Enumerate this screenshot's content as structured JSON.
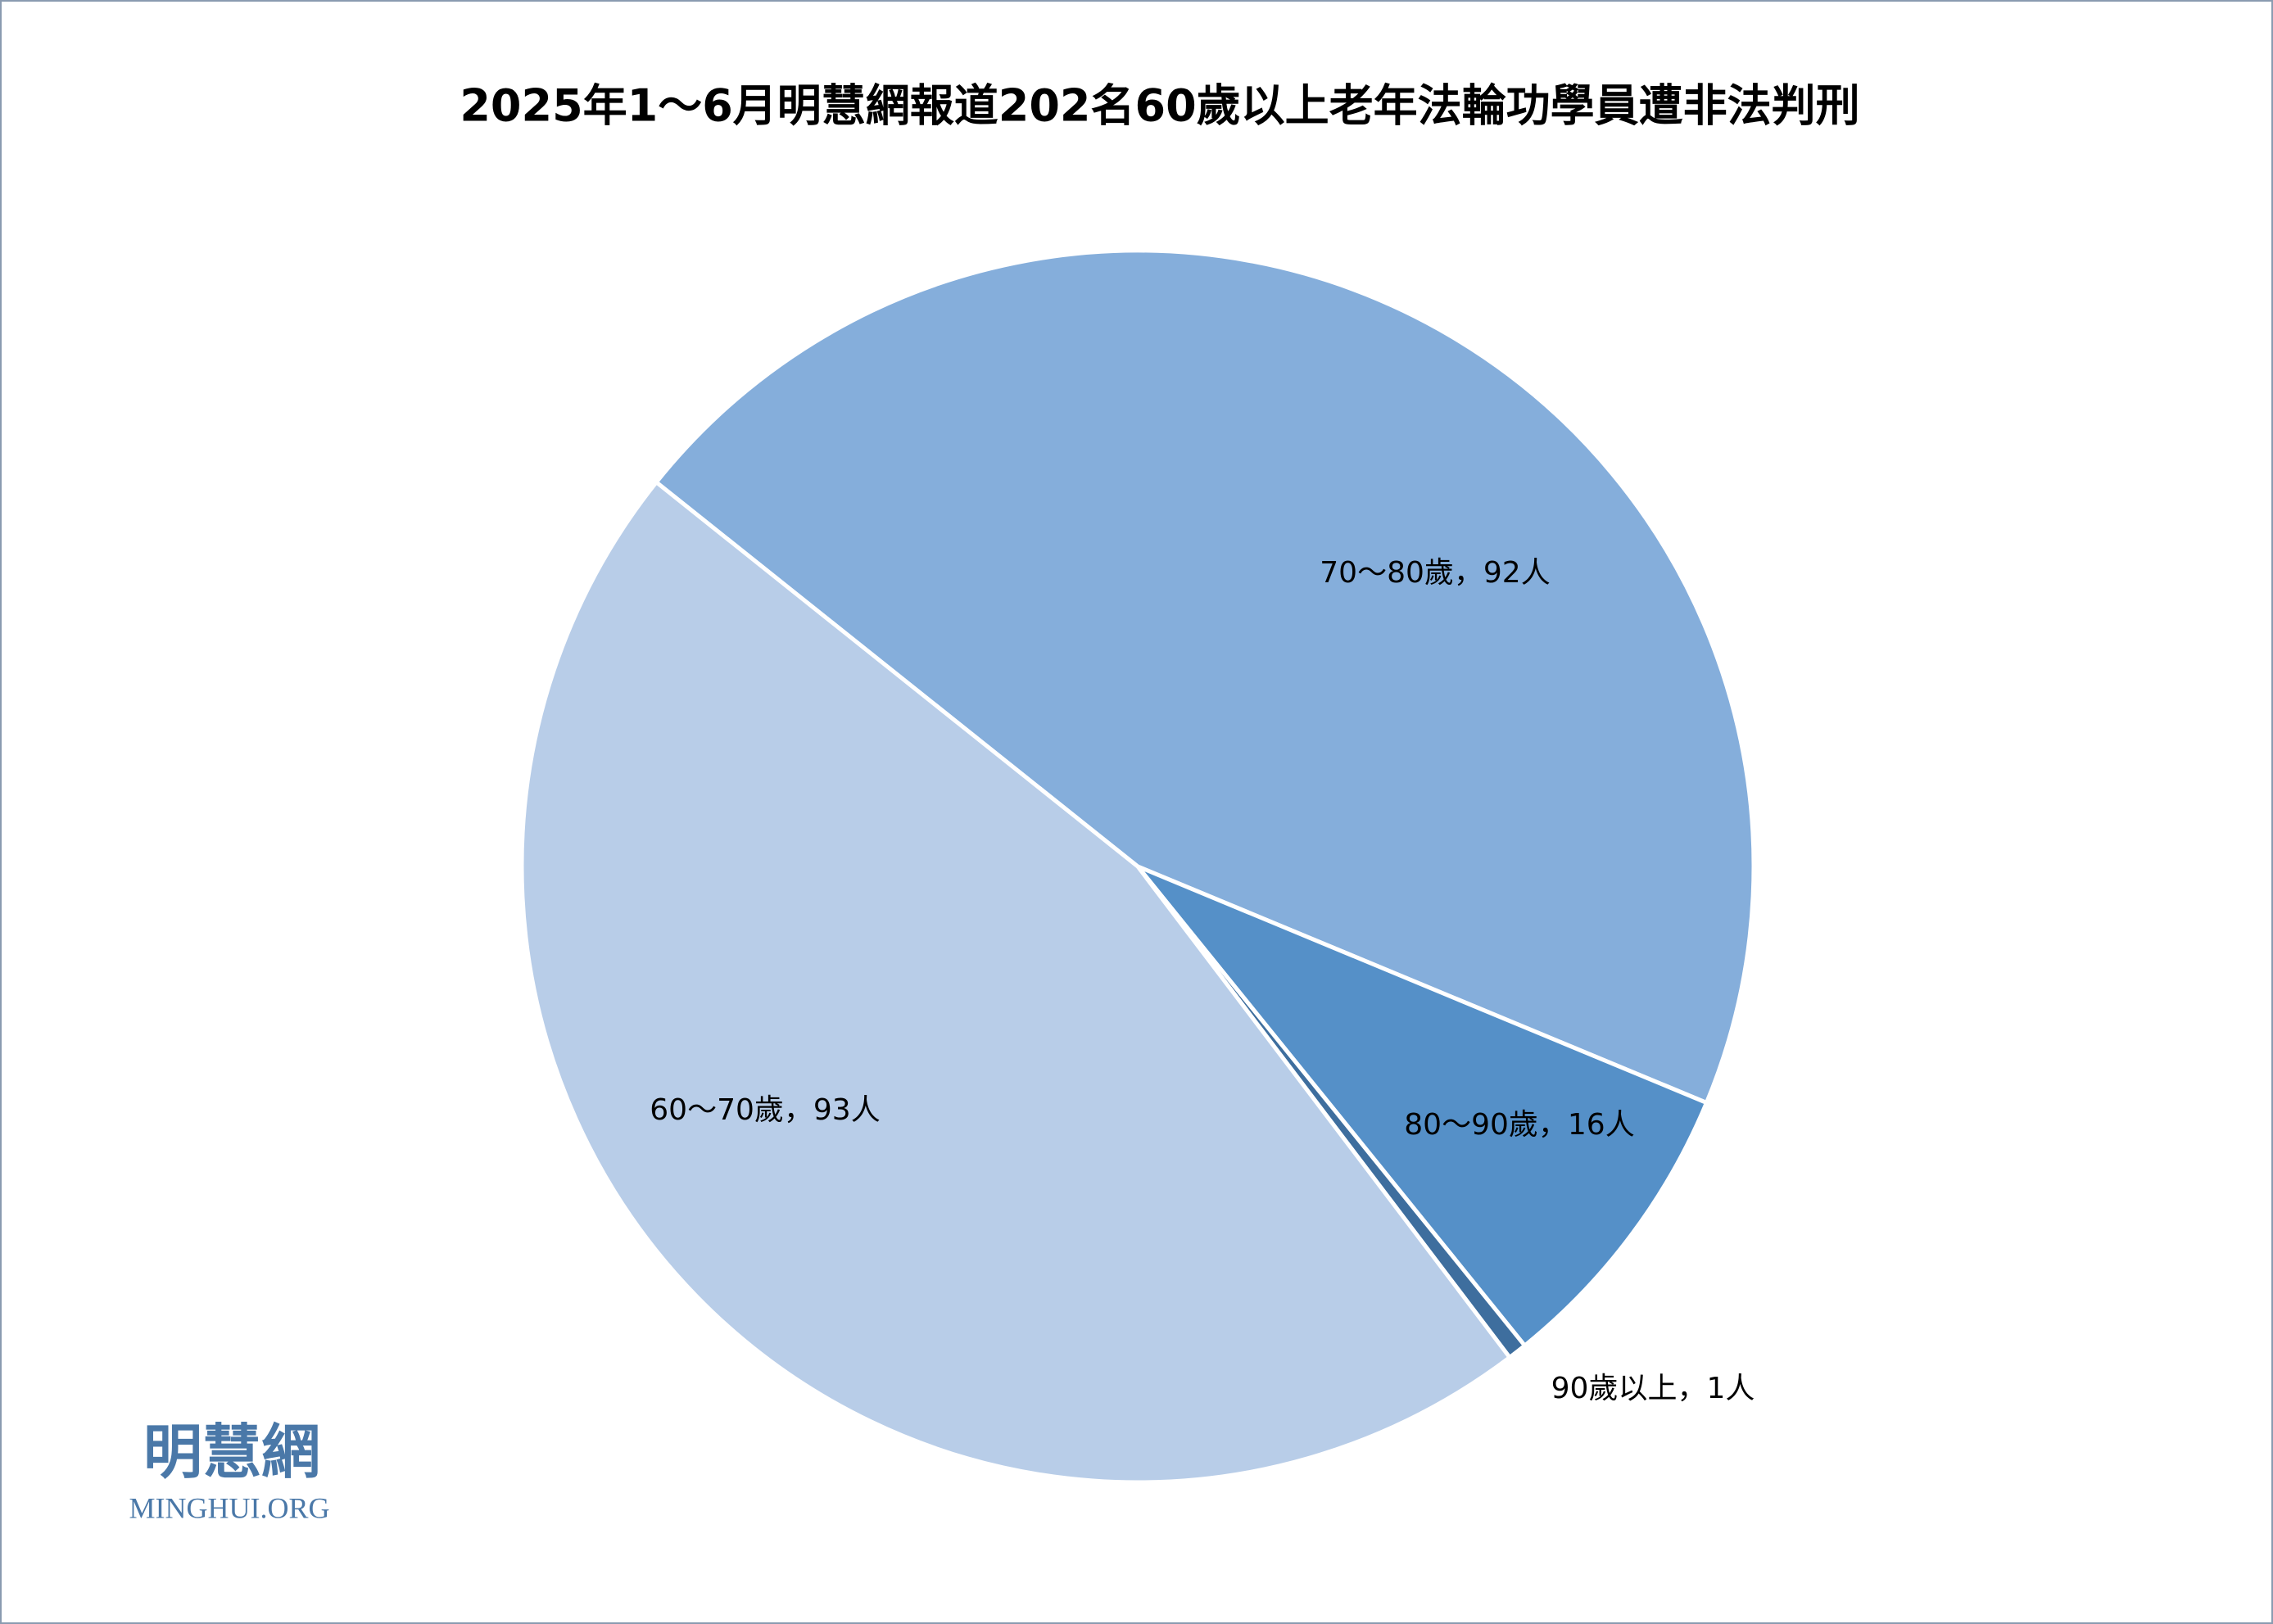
{
  "chart_data": {
    "type": "pie",
    "title": "2025年1～6月明慧網報道202名60歲以上老年法輪功學員遭非法判刑",
    "categories": [
      "70～80歲",
      "80～90歲",
      "90歲以上",
      "60～70歲"
    ],
    "labels": [
      "70～80歲，92人",
      "80～90歲，16人",
      "90歲以上，1人",
      "60～70歲，93人"
    ],
    "values": [
      92,
      16,
      1,
      93
    ],
    "colors": [
      "#85aedb",
      "#5590c8",
      "#3e6e9e",
      "#b8cde8"
    ]
  },
  "logo": {
    "title": "明慧網",
    "subtitle": "MINGHUI.ORG"
  }
}
